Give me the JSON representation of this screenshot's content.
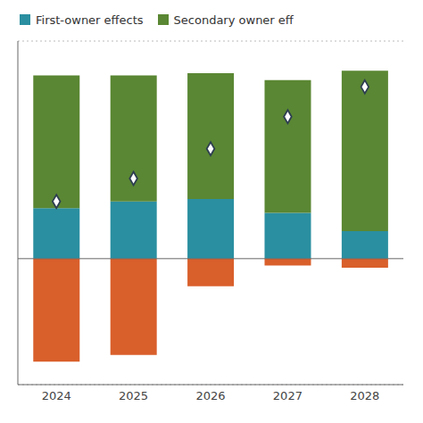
{
  "chart_data": {
    "type": "bar",
    "categories": [
      "2024",
      "2025",
      "2026",
      "2027",
      "2028"
    ],
    "series": [
      {
        "color": "#d95f2b",
        "values": [
          -4.5,
          -4.2,
          -1.2,
          -0.3,
          -0.4
        ]
      },
      {
        "name": "First-owner effects",
        "color": "#2a8fa0",
        "values": [
          2.2,
          2.5,
          2.6,
          2.0,
          1.2
        ]
      },
      {
        "name": "Secondary owner eff",
        "color": "#5a8733",
        "values": [
          5.8,
          5.5,
          5.5,
          5.8,
          7.0
        ]
      },
      {
        "type": "scatter",
        "marker": "diamond",
        "color": "#2d3e50",
        "values": [
          2.5,
          3.5,
          4.8,
          6.2,
          7.5
        ]
      }
    ],
    "stacked": true,
    "ylim": [
      -5.5,
      9.5
    ],
    "yticks": [
      1.5,
      4.5,
      7.5
    ],
    "grid": true,
    "tick_labels": "x",
    "legend": "upper left"
  }
}
